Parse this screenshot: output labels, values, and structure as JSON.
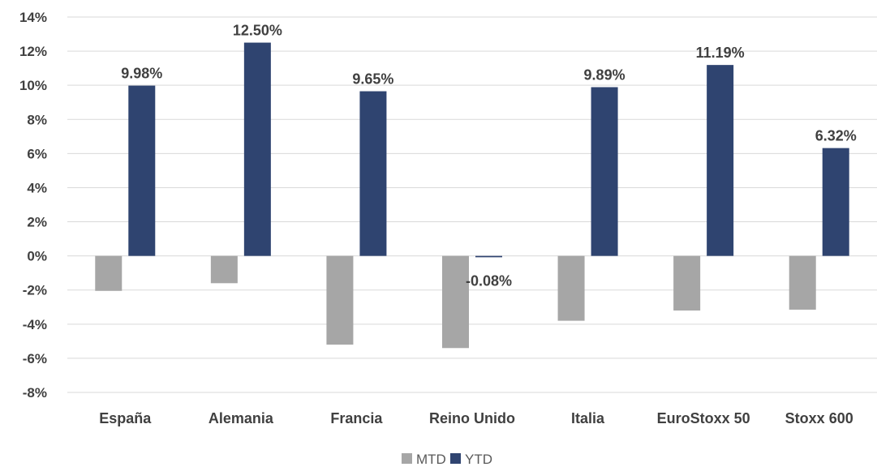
{
  "chart_data": {
    "type": "bar",
    "title": "",
    "xlabel": "",
    "ylabel": "",
    "categories": [
      "España",
      "Alemania",
      "Francia",
      "Reino Unido",
      "Italia",
      "EuroStoxx 50",
      "Stoxx 600"
    ],
    "series": [
      {
        "name": "MTD",
        "values": [
          -2.05,
          -1.6,
          -5.2,
          -5.4,
          -3.8,
          -3.2,
          -3.15
        ],
        "color": "#a6a6a6",
        "labels": [
          "",
          "",
          "",
          "",
          "",
          "",
          ""
        ]
      },
      {
        "name": "YTD",
        "values": [
          9.98,
          12.5,
          9.65,
          -0.08,
          9.89,
          11.19,
          6.32
        ],
        "color": "#2f4470",
        "labels": [
          "9.98%",
          "12.50%",
          "9.65%",
          "-0.08%",
          "9.89%",
          "11.19%",
          "6.32%"
        ]
      }
    ],
    "ylim": [
      -8,
      14
    ],
    "yticks": [
      14,
      12,
      10,
      8,
      6,
      4,
      2,
      0,
      -2,
      -4,
      -6,
      -8
    ],
    "ytick_labels": [
      "14%",
      "12%",
      "10%",
      "8%",
      "6%",
      "4%",
      "2%",
      "0%",
      "-2%",
      "-4%",
      "-6%",
      "-8%"
    ],
    "grid": true,
    "legend": "bottom-center"
  }
}
